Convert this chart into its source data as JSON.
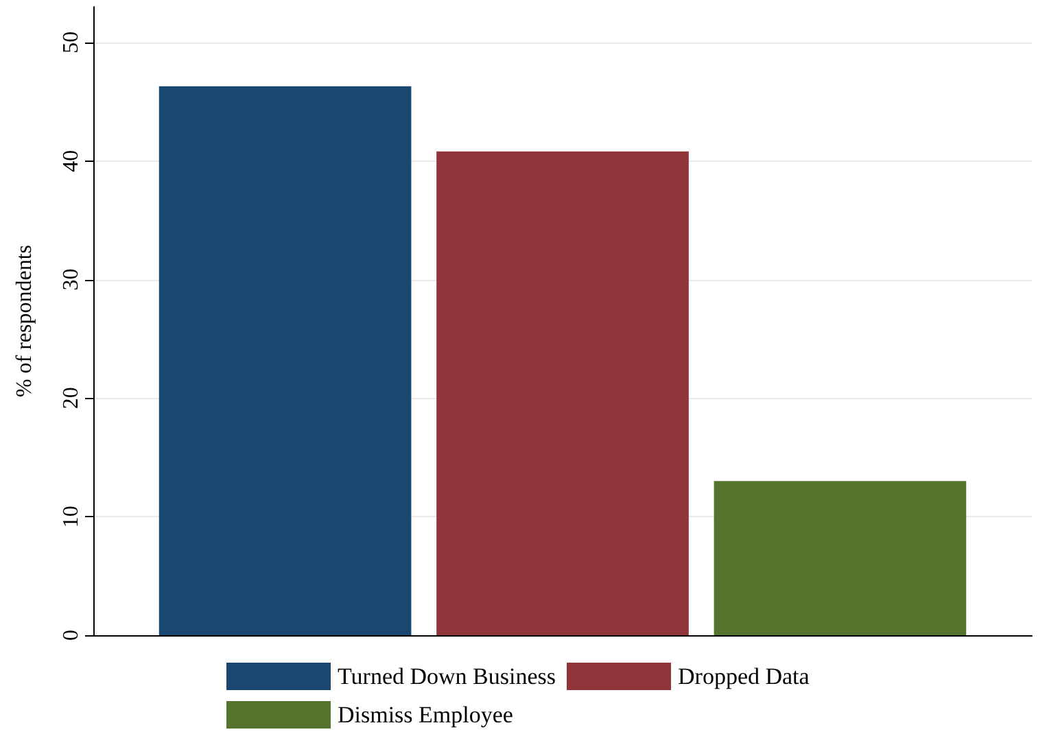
{
  "chart_data": {
    "type": "bar",
    "ylabel": "% of respondents",
    "categories": [
      null
    ],
    "series": [
      {
        "name": "Turned Down Business",
        "color": "#1a476f",
        "values": [
          46.3
        ]
      },
      {
        "name": "Dropped Data",
        "color": "#90353b",
        "values": [
          40.8
        ]
      },
      {
        "name": "Dismiss Employee",
        "color": "#55752f",
        "values": [
          13.0
        ]
      }
    ],
    "ylim": [
      0,
      53
    ],
    "yticks": [
      0,
      10,
      20,
      30,
      40,
      50
    ],
    "grid": "y",
    "legend": "bottom"
  }
}
